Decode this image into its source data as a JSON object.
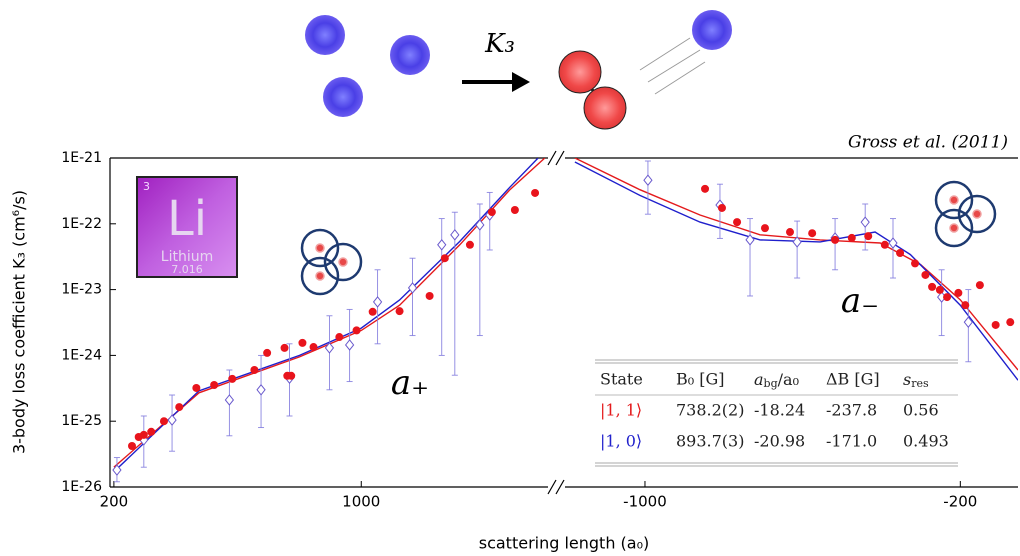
{
  "reaction": {
    "label": "K₃"
  },
  "element": {
    "number": "3",
    "symbol": "Li",
    "name": "Lithium",
    "mass": "7.016"
  },
  "table": {
    "header": [
      "State",
      "B₀ [G]",
      {
        "text": "a",
        "sub": "bg",
        "rest": "/a₀"
      },
      "ΔB [G]",
      {
        "text": "s",
        "sub": "res"
      }
    ],
    "rows": [
      {
        "color": "#e41a1c",
        "cells": [
          "|1, 1⟩",
          "738.2(2)",
          "-18.24",
          "-237.8",
          "0.56"
        ]
      },
      {
        "color": "#2222cc",
        "cells": [
          "|1, 0⟩",
          "893.7(3)",
          "-20.98",
          "-171.0",
          "0.493"
        ]
      }
    ]
  },
  "chart_data": [
    {
      "type": "scatter",
      "xscale": "log",
      "yscale": "log",
      "xlabel": "scattering length (a₀)",
      "ylabel": "3-body loss coefficient K₃ (cm⁶/s)",
      "annotation": "a₊",
      "xlim": [
        195,
        3370
      ],
      "xticks": [
        200,
        1000
      ],
      "ylim": [
        1e-26,
        1e-21
      ],
      "yticks": [
        {
          "value": 1e-26,
          "label": "1E-26"
        },
        {
          "value": 1e-25,
          "label": "1E-25"
        },
        {
          "value": 1e-24,
          "label": "1E-24"
        },
        {
          "value": 1e-23,
          "label": "1E-23"
        },
        {
          "value": 1e-22,
          "label": "1E-22"
        },
        {
          "value": 1e-21,
          "label": "1E-21"
        }
      ],
      "series": [
        {
          "marker": "circle",
          "color": "#e8141c",
          "x": [
            225,
            235,
            243,
            255,
            277,
            306,
            342,
            384,
            432,
            499,
            542,
            607,
            618,
            634,
            682,
            733,
            867,
            970,
            1077,
            1283,
            1560,
            1722,
            2028,
            2339,
            2717,
            3098
          ],
          "values": [
            4.2e-26,
            5.75e-26,
            6.2e-26,
            6.9e-26,
            1e-25,
            1.64e-25,
            3.2e-25,
            3.55e-25,
            4.4e-25,
            6e-25,
            1.09e-24,
            1.3e-24,
            4.9e-25,
            4.9e-25,
            1.55e-24,
            1.34e-24,
            1.9e-24,
            2.4e-24,
            4.6e-24,
            4.7e-24,
            8e-24,
            3e-23,
            4.8e-23,
            1.51e-22,
            1.62e-22,
            2.94e-22
          ]
        },
        {
          "marker": "diamond",
          "color": "#6a5acd",
          "x": [
            204,
            243,
            292,
            424,
            521,
            627,
            813,
            927,
            1112,
            1396,
            1688,
            1838,
            2163,
            2307
          ],
          "values": [
            1.81e-26,
            5.2e-26,
            1.04e-25,
            2.1e-25,
            3e-25,
            4.5e-25,
            1.3e-24,
            1.44e-24,
            6.5e-24,
            1.06e-23,
            4.8e-23,
            6.8e-23,
            9.6e-23,
            1.36e-22
          ],
          "lower": [
            1.2e-26,
            2e-26,
            3.5e-26,
            6e-26,
            8e-26,
            1.2e-25,
            3e-25,
            4e-25,
            1.5e-24,
            2e-24,
            1e-24,
            5e-25,
            2e-24,
            4e-23
          ],
          "upper": [
            2.8e-26,
            1.2e-25,
            2.5e-25,
            6e-25,
            1e-24,
            1.5e-24,
            4e-24,
            5e-24,
            2e-23,
            3e-23,
            1.2e-22,
            1.5e-22,
            2e-22,
            3e-22
          ]
        },
        {
          "marker": "line",
          "color": "#e41a1c",
          "x": [
            200,
            348,
            669,
            1000,
            1283,
            1898,
            2630,
            3300
          ],
          "values": [
            2e-26,
            2.7e-25,
            9.5e-25,
            2.4e-24,
            5.8e-24,
            4.8e-23,
            3.3e-22,
            1e-21
          ]
        },
        {
          "marker": "line",
          "color": "#1f1fcc",
          "x": [
            200,
            348,
            669,
            1000,
            1283,
            1898,
            2630,
            3160
          ],
          "values": [
            1.7e-26,
            2.9e-25,
            1e-24,
            2.6e-24,
            6.95e-24,
            5.4e-23,
            3.6e-22,
            1e-21
          ]
        }
      ]
    },
    {
      "type": "scatter",
      "xscale": "log",
      "yscale": "log",
      "title": "Gross et al. (2011)",
      "annotation": "a₋",
      "xlim": [
        -1504,
        -149
      ],
      "xticks": [
        -1000,
        -200
      ],
      "ylim": [
        1e-26,
        1e-21
      ],
      "series": [
        {
          "marker": "circle",
          "color": "#e8141c",
          "x": [
            -736,
            -675,
            -625,
            -542,
            -477,
            -426,
            -379,
            -348,
            -320,
            -294,
            -272,
            -252,
            -239,
            -231,
            -222,
            -214,
            -202,
            -195,
            -181,
            -167,
            -155
          ],
          "values": [
            3.4e-22,
            1.74e-22,
            1.06e-22,
            8.6e-23,
            7.5e-23,
            7.2e-23,
            5.7e-23,
            6.1e-23,
            6.5e-23,
            4.8e-23,
            3.6e-23,
            2.5e-23,
            1.67e-23,
            1.1e-23,
            9.9e-24,
            7.7e-24,
            8.9e-24,
            5.8e-24,
            1.17e-23,
            2.9e-24,
            3.2e-24
          ]
        },
        {
          "marker": "diamond",
          "color": "#6a5acd",
          "x": [
            -985,
            -682,
            -585,
            -460,
            -379,
            -325,
            -282,
            -220,
            -192
          ],
          "values": [
            4.6e-22,
            1.93e-22,
            5.7e-23,
            5.3e-23,
            6.1e-23,
            1.06e-22,
            5.1e-23,
            7.7e-24,
            3.2e-24
          ],
          "lower": [
            1.4e-22,
            6e-23,
            8e-24,
            1.5e-23,
            2e-23,
            4e-23,
            1.5e-23,
            2e-24,
            8e-25
          ],
          "upper": [
            9e-22,
            4e-22,
            1.2e-22,
            1.1e-22,
            1.2e-22,
            2e-22,
            1.2e-22,
            2e-23,
            1e-23
          ]
        },
        {
          "marker": "line",
          "color": "#e41a1c",
          "x": [
            -1430,
            -1026,
            -755,
            -556,
            -409,
            -301,
            -245,
            -200,
            -149
          ],
          "values": [
            1e-21,
            3.3e-22,
            1.36e-22,
            6.8e-23,
            5.7e-23,
            5.1e-23,
            2.4e-23,
            7e-24,
            6e-25
          ]
        },
        {
          "marker": "line",
          "color": "#1f1fcc",
          "x": [
            -1430,
            -1026,
            -755,
            -556,
            -409,
            -309,
            -258,
            -200,
            -149
          ],
          "values": [
            8.7e-22,
            2.7e-22,
            1.06e-22,
            5.7e-23,
            5.3e-23,
            7.5e-23,
            3.4e-23,
            5.8e-24,
            4.2e-25
          ]
        }
      ]
    }
  ]
}
